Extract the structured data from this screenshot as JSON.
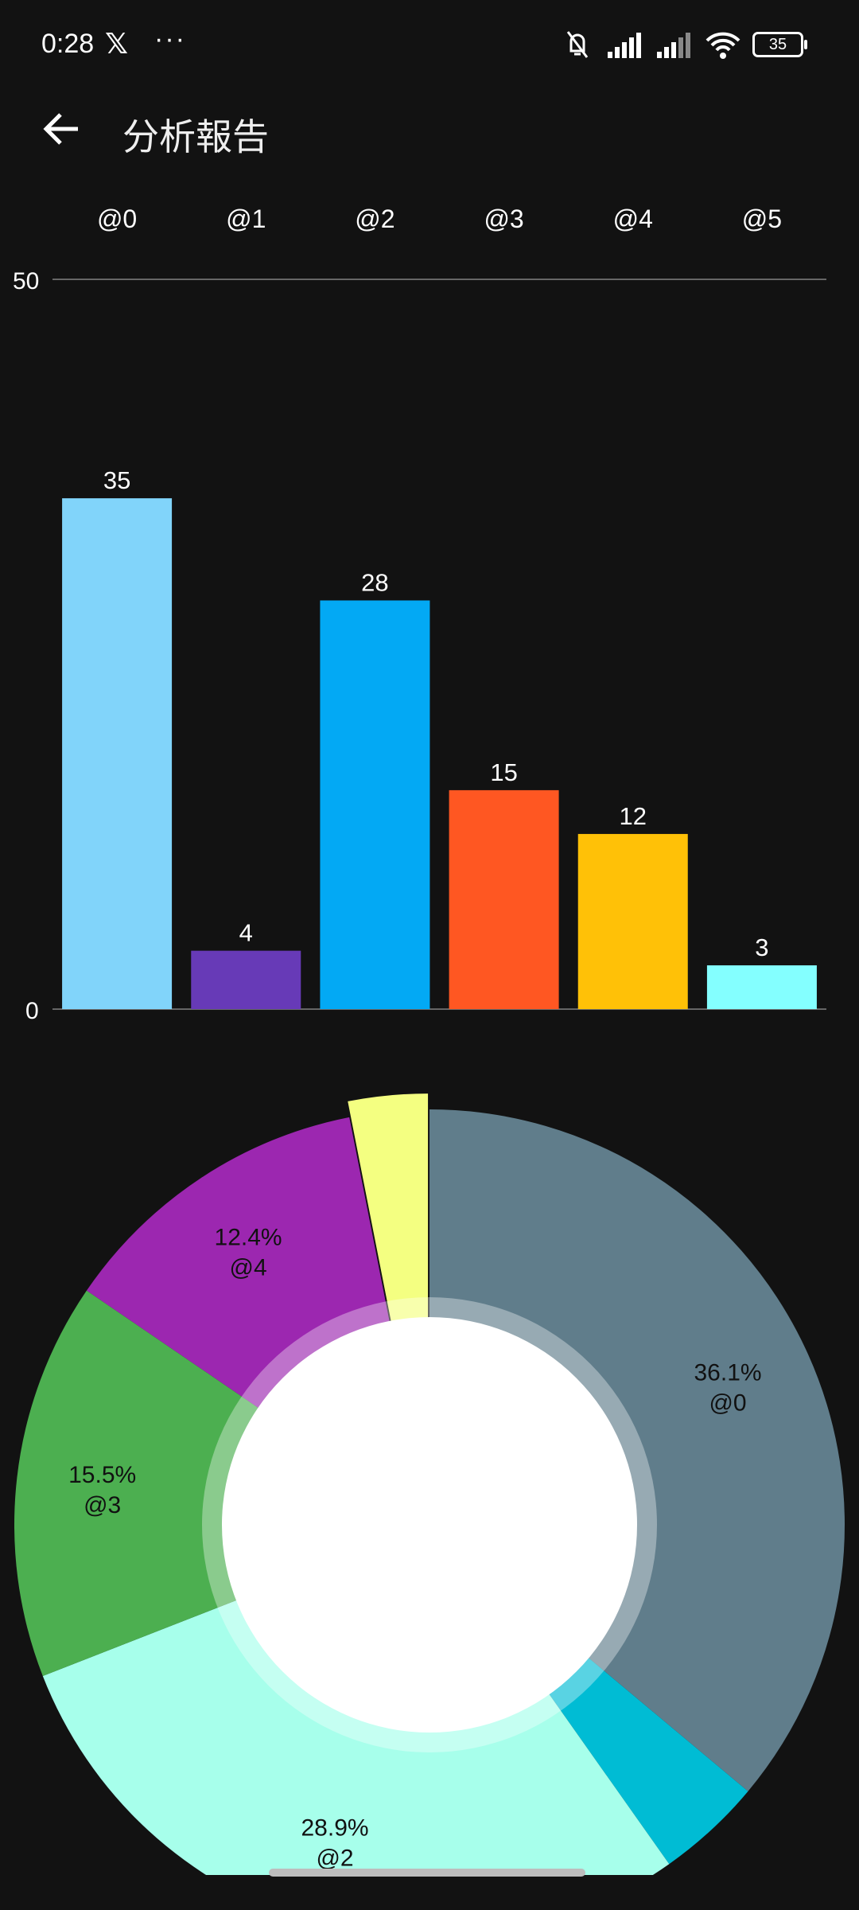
{
  "status_bar": {
    "time": "0:28",
    "app_icon": "x-logo-icon",
    "more": "···",
    "icons": [
      "bell-muted-icon",
      "signal-icon",
      "signal-icon",
      "wifi-icon"
    ],
    "battery": "35"
  },
  "app_bar": {
    "back_icon": "arrow-left-icon",
    "title": "分析報告"
  },
  "chart_data": [
    {
      "type": "bar",
      "categories": [
        "@0",
        "@1",
        "@2",
        "@3",
        "@4",
        "@5"
      ],
      "values": [
        35,
        4,
        28,
        15,
        12,
        3
      ],
      "colors": [
        "#81D4FA",
        "#673AB7",
        "#03A9F4",
        "#FF5722",
        "#FFC107",
        "#84FFFF"
      ],
      "ylim": [
        0,
        50
      ],
      "yticks": [
        "0",
        "50"
      ],
      "category_labels_position": "top",
      "data_labels": true,
      "grid": false
    },
    {
      "type": "pie",
      "style": "donut",
      "categories": [
        "@0",
        "@1",
        "@2",
        "@3",
        "@4",
        "@5"
      ],
      "values": [
        35,
        4,
        28,
        15,
        12,
        3
      ],
      "percent_labels": [
        "36.1%",
        "4.1%",
        "28.9%",
        "15.5%",
        "12.4%",
        "3.1%"
      ],
      "shown_labels": [
        true,
        false,
        true,
        true,
        true,
        false
      ],
      "colors": [
        "#607D8B",
        "#00BCD4",
        "#A7FFEB",
        "#4CAF50",
        "#9C27B0",
        "#F4FF81"
      ],
      "highlighted": "@5",
      "center_color": "#FFFFFF"
    }
  ]
}
